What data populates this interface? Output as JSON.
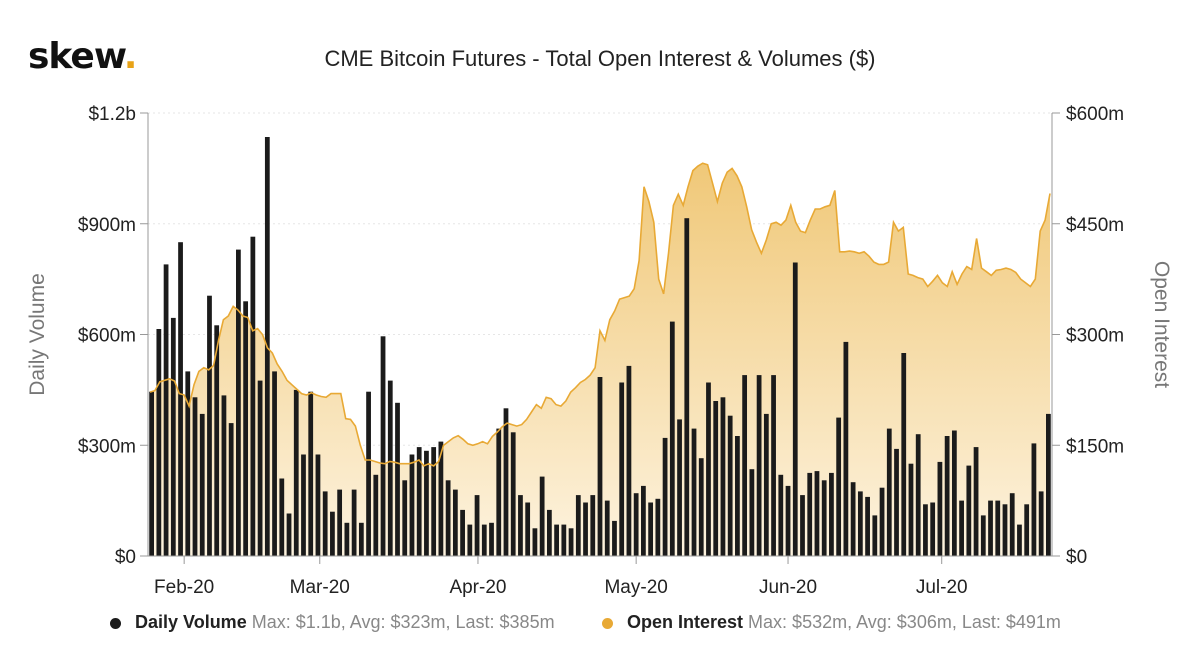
{
  "header": {
    "logo_text": "skew",
    "logo_dot": ".",
    "title": "CME Bitcoin Futures - Total Open Interest & Volumes ($)"
  },
  "colors": {
    "bars": "#1b1b1b",
    "line": "#e8a935",
    "area_top": "#f0c878",
    "area_bottom": "#fdf3df",
    "axis": "#999999"
  },
  "legend": {
    "items": [
      {
        "name": "Daily Volume",
        "stats": "Max: $1.1b, Avg: $323m, Last: $385m",
        "color": "#1b1b1b"
      },
      {
        "name": "Open Interest",
        "stats": "Max: $532m, Avg: $306m, Last: $491m",
        "color": "#e8a935"
      }
    ]
  },
  "chart_data": {
    "type": "bar+area",
    "title": "CME Bitcoin Futures - Total Open Interest & Volumes ($)",
    "x_tick_labels": [
      "Feb-20",
      "Mar-20",
      "Apr-20",
      "May-20",
      "Jun-20",
      "Jul-20"
    ],
    "y_left": {
      "label": "Daily Volume",
      "ticks": [
        "$0",
        "$300m",
        "$600m",
        "$900m",
        "$1.2b"
      ],
      "ylim": [
        0,
        1200
      ]
    },
    "y_right": {
      "label": "Open Interest",
      "ticks": [
        "$0",
        "$150m",
        "$300m",
        "$450m",
        "$600m"
      ],
      "ylim": [
        0,
        600
      ]
    },
    "units": "millions USD",
    "series": [
      {
        "name": "Daily Volume",
        "type": "bar",
        "axis": "left",
        "values": [
          445,
          615,
          790,
          645,
          850,
          500,
          430,
          385,
          705,
          625,
          435,
          360,
          830,
          690,
          865,
          475,
          1135,
          500,
          210,
          115,
          450,
          275,
          445,
          275,
          175,
          120,
          180,
          90,
          180,
          90,
          445,
          220,
          595,
          475,
          415,
          205,
          275,
          295,
          285,
          295,
          310,
          205,
          180,
          125,
          85,
          165,
          85,
          90,
          345,
          400,
          335,
          165,
          145,
          75,
          215,
          125,
          85,
          85,
          75,
          165,
          145,
          165,
          485,
          150,
          95,
          470,
          515,
          170,
          190,
          145,
          155,
          320,
          635,
          370,
          915,
          345,
          265,
          470,
          420,
          430,
          380,
          325,
          490,
          235,
          490,
          385,
          490,
          220,
          190,
          795,
          165,
          225,
          230,
          205,
          225,
          375,
          580,
          200,
          175,
          160,
          110,
          185,
          345,
          290,
          550,
          250,
          330,
          140,
          145,
          255,
          325,
          340,
          150,
          245,
          295,
          110,
          150,
          150,
          140,
          170,
          85,
          140,
          305,
          175,
          385
        ]
      },
      {
        "name": "Open Interest",
        "type": "area",
        "axis": "right",
        "values": [
          222,
          224,
          236,
          238,
          240,
          237,
          220,
          218,
          203,
          232,
          250,
          255,
          252,
          258,
          292,
          320,
          325,
          338,
          333,
          325,
          323,
          305,
          308,
          300,
          282,
          275,
          260,
          250,
          238,
          232,
          226,
          220,
          218,
          221,
          218,
          216,
          215,
          220,
          220,
          220,
          186,
          185,
          176,
          150,
          130,
          130,
          128,
          126,
          125,
          128,
          127,
          125,
          125,
          125,
          127,
          130,
          122,
          125,
          122,
          128,
          150,
          155,
          160,
          163,
          158,
          152,
          150,
          152,
          155,
          152,
          162,
          168,
          175,
          180,
          178,
          176,
          178,
          185,
          195,
          205,
          200,
          215,
          213,
          205,
          203,
          210,
          222,
          228,
          235,
          239,
          245,
          255,
          305,
          292,
          320,
          332,
          348,
          350,
          352,
          362,
          400,
          500,
          480,
          452,
          375,
          355,
          410,
          475,
          490,
          475,
          500,
          522,
          528,
          532,
          530,
          505,
          480,
          505,
          520,
          525,
          515,
          500,
          473,
          442,
          425,
          410,
          428,
          450,
          452,
          448,
          455,
          475,
          452,
          440,
          438,
          455,
          470,
          470,
          473,
          475,
          495,
          412,
          412,
          413,
          412,
          410,
          412,
          406,
          398,
          395,
          395,
          398,
          452,
          440,
          445,
          382,
          380,
          377,
          375,
          365,
          372,
          380,
          370,
          365,
          385,
          368,
          382,
          392,
          388,
          430,
          390,
          385,
          380,
          387,
          388,
          390,
          388,
          384,
          375,
          370,
          365,
          375,
          440,
          455,
          491
        ]
      }
    ]
  }
}
